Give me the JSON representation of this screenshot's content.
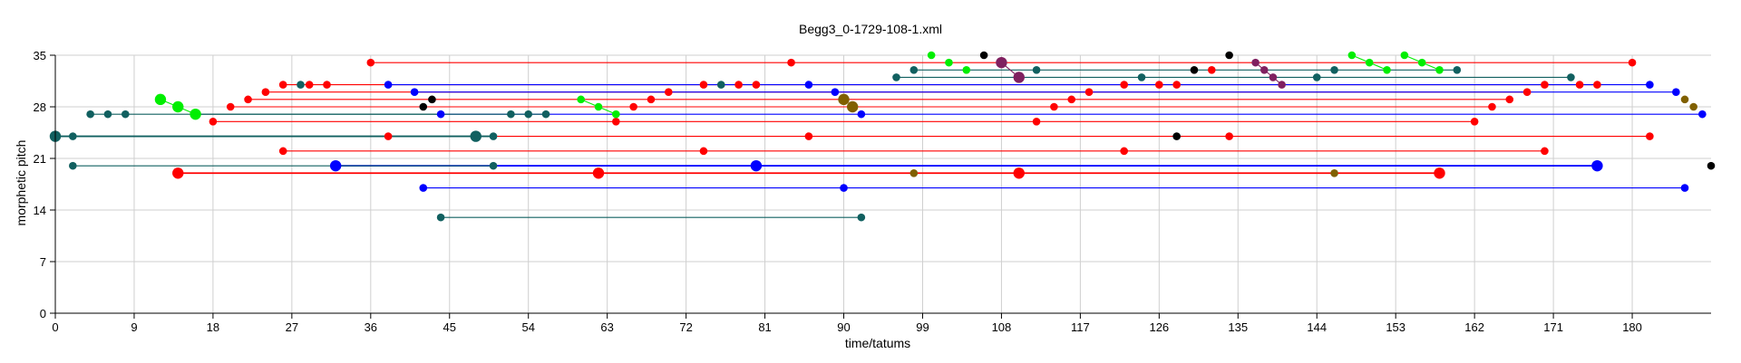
{
  "chart_data": {
    "type": "scatter",
    "title": "Begg3_0-1729-108-1.xml",
    "xlabel": "time/tatums",
    "ylabel": "morphetic pitch",
    "xlim": [
      0,
      189
    ],
    "ylim": [
      0,
      35
    ],
    "xticks": [
      0,
      9,
      18,
      27,
      36,
      45,
      54,
      63,
      72,
      81,
      90,
      99,
      108,
      117,
      126,
      135,
      144,
      153,
      162,
      171,
      180
    ],
    "yticks": [
      0,
      7,
      14,
      21,
      28,
      35
    ],
    "grid": true,
    "colors": {
      "red": "#ff0000",
      "blue": "#0000ff",
      "teal": "#116060",
      "green": "#00ee00",
      "black": "#000000",
      "purple": "#802060",
      "olive": "#806000"
    },
    "series": [
      {
        "color": "red",
        "points": [
          [
            36,
            34
          ],
          [
            84,
            34
          ],
          [
            180,
            34
          ]
        ]
      },
      {
        "color": "red",
        "points": [
          [
            26,
            31
          ],
          [
            29,
            31
          ],
          [
            31,
            31
          ],
          [
            74,
            31
          ],
          [
            78,
            31
          ],
          [
            80,
            31
          ],
          [
            122,
            31
          ],
          [
            126,
            31
          ],
          [
            128,
            31
          ],
          [
            170,
            31
          ],
          [
            174,
            31
          ],
          [
            176,
            31
          ]
        ]
      },
      {
        "color": "red",
        "points": [
          [
            24,
            30
          ],
          [
            70,
            30
          ],
          [
            118,
            30
          ],
          [
            168,
            30
          ]
        ]
      },
      {
        "color": "red",
        "points": [
          [
            22,
            29
          ],
          [
            68,
            29
          ],
          [
            116,
            29
          ],
          [
            166,
            29
          ]
        ]
      },
      {
        "color": "red",
        "points": [
          [
            20,
            28
          ],
          [
            66,
            28
          ],
          [
            114,
            28
          ],
          [
            164,
            28
          ]
        ]
      },
      {
        "color": "red",
        "points": [
          [
            18,
            26
          ],
          [
            64,
            26
          ],
          [
            112,
            26
          ],
          [
            162,
            26
          ]
        ]
      },
      {
        "color": "red",
        "points": [
          [
            132,
            33
          ]
        ]
      },
      {
        "color": "red",
        "points": [
          [
            38,
            24
          ],
          [
            86,
            24
          ],
          [
            134,
            24
          ],
          [
            182,
            24
          ]
        ]
      },
      {
        "color": "red",
        "points": [
          [
            26,
            22
          ],
          [
            74,
            22
          ],
          [
            122,
            22
          ],
          [
            170,
            22
          ]
        ]
      },
      {
        "color": "red",
        "points": [
          [
            14,
            19
          ],
          [
            62,
            19
          ],
          [
            110,
            19
          ],
          [
            158,
            19
          ]
        ],
        "large": true
      },
      {
        "color": "blue",
        "points": [
          [
            38,
            31
          ],
          [
            86,
            31
          ],
          [
            182,
            31
          ]
        ]
      },
      {
        "color": "blue",
        "points": [
          [
            41,
            30
          ],
          [
            89,
            30
          ],
          [
            185,
            30
          ]
        ]
      },
      {
        "color": "blue",
        "points": [
          [
            44,
            27
          ],
          [
            92,
            27
          ],
          [
            188,
            27
          ]
        ]
      },
      {
        "color": "blue",
        "points": [
          [
            32,
            20
          ],
          [
            80,
            20
          ],
          [
            176,
            20
          ]
        ],
        "large": true
      },
      {
        "color": "blue",
        "points": [
          [
            42,
            17
          ],
          [
            90,
            17
          ],
          [
            186,
            17
          ]
        ]
      },
      {
        "color": "teal",
        "points": [
          [
            28,
            31
          ],
          [
            76,
            31
          ],
          [
            112,
            33
          ],
          [
            124,
            32
          ],
          [
            144,
            32
          ],
          [
            146,
            33
          ],
          [
            160,
            33
          ],
          [
            173,
            32
          ]
        ]
      },
      {
        "color": "teal",
        "points": [
          [
            96,
            32
          ],
          [
            98,
            33
          ]
        ]
      },
      {
        "color": "teal",
        "points": [
          [
            0,
            24
          ],
          [
            2,
            24
          ],
          [
            48,
            24
          ],
          [
            50,
            24
          ]
        ],
        "large_first": true
      },
      {
        "color": "teal",
        "points": [
          [
            2,
            20
          ],
          [
            50,
            20
          ]
        ]
      },
      {
        "color": "teal",
        "points": [
          [
            4,
            27
          ],
          [
            6,
            27
          ],
          [
            8,
            27
          ],
          [
            52,
            27
          ],
          [
            54,
            27
          ],
          [
            56,
            27
          ]
        ]
      },
      {
        "color": "teal",
        "points": [
          [
            44,
            13
          ],
          [
            92,
            13
          ]
        ]
      },
      {
        "color": "green",
        "points": [
          [
            12,
            29
          ],
          [
            14,
            28
          ],
          [
            16,
            27
          ]
        ],
        "large": true
      },
      {
        "color": "green",
        "points": [
          [
            60,
            29
          ],
          [
            62,
            28
          ],
          [
            64,
            27
          ]
        ]
      },
      {
        "color": "green",
        "points": [
          [
            100,
            35
          ],
          [
            102,
            34
          ],
          [
            104,
            33
          ]
        ]
      },
      {
        "color": "green",
        "points": [
          [
            148,
            35
          ],
          [
            150,
            34
          ],
          [
            152,
            33
          ]
        ]
      },
      {
        "color": "green",
        "points": [
          [
            154,
            35
          ],
          [
            156,
            34
          ],
          [
            158,
            33
          ]
        ]
      },
      {
        "color": "black",
        "points": [
          [
            42,
            28
          ],
          [
            43,
            29
          ],
          [
            106,
            35
          ],
          [
            130,
            33
          ],
          [
            134,
            35
          ],
          [
            128,
            24
          ],
          [
            189,
            20
          ]
        ]
      },
      {
        "color": "purple",
        "points": [
          [
            108,
            34
          ],
          [
            110,
            32
          ]
        ],
        "large": true
      },
      {
        "color": "purple",
        "points": [
          [
            137,
            34
          ],
          [
            138,
            33
          ],
          [
            139,
            32
          ],
          [
            140,
            31
          ]
        ]
      },
      {
        "color": "olive",
        "points": [
          [
            90,
            29
          ],
          [
            91,
            28
          ]
        ],
        "large": true
      },
      {
        "color": "olive",
        "points": [
          [
            186,
            29
          ],
          [
            187,
            28
          ]
        ]
      },
      {
        "color": "olive",
        "points": [
          [
            98,
            19
          ],
          [
            146,
            19
          ]
        ]
      }
    ],
    "connectors": [
      {
        "color": "red",
        "from": [
          36,
          34
        ],
        "to": [
          180,
          34
        ]
      },
      {
        "color": "red",
        "from": [
          26,
          31
        ],
        "to": [
          176,
          31
        ]
      },
      {
        "color": "red",
        "from": [
          24,
          30
        ],
        "to": [
          168,
          30
        ]
      },
      {
        "color": "red",
        "from": [
          22,
          29
        ],
        "to": [
          166,
          29
        ]
      },
      {
        "color": "red",
        "from": [
          20,
          28
        ],
        "to": [
          164,
          28
        ]
      },
      {
        "color": "red",
        "from": [
          18,
          26
        ],
        "to": [
          162,
          26
        ]
      },
      {
        "color": "red",
        "from": [
          38,
          24
        ],
        "to": [
          182,
          24
        ]
      },
      {
        "color": "red",
        "from": [
          26,
          22
        ],
        "to": [
          170,
          22
        ]
      },
      {
        "color": "red",
        "from": [
          14,
          19
        ],
        "to": [
          158,
          19
        ],
        "thick": true
      },
      {
        "color": "blue",
        "from": [
          38,
          31
        ],
        "to": [
          182,
          31
        ]
      },
      {
        "color": "blue",
        "from": [
          41,
          30
        ],
        "to": [
          185,
          30
        ]
      },
      {
        "color": "blue",
        "from": [
          44,
          27
        ],
        "to": [
          188,
          27
        ]
      },
      {
        "color": "blue",
        "from": [
          32,
          20
        ],
        "to": [
          176,
          20
        ],
        "thick": true
      },
      {
        "color": "blue",
        "from": [
          42,
          17
        ],
        "to": [
          186,
          17
        ]
      },
      {
        "color": "teal",
        "from": [
          96,
          32
        ],
        "to": [
          173,
          32
        ]
      },
      {
        "color": "teal",
        "from": [
          98,
          33
        ],
        "to": [
          160,
          33
        ]
      },
      {
        "color": "teal",
        "from": [
          0,
          24
        ],
        "to": [
          50,
          24
        ],
        "thick": true
      },
      {
        "color": "teal",
        "from": [
          2,
          20
        ],
        "to": [
          50,
          20
        ]
      },
      {
        "color": "teal",
        "from": [
          4,
          27
        ],
        "to": [
          56,
          27
        ]
      },
      {
        "color": "teal",
        "from": [
          44,
          13
        ],
        "to": [
          92,
          13
        ]
      },
      {
        "color": "teal",
        "from": [
          16,
          27
        ],
        "to": [
          44,
          27
        ]
      },
      {
        "color": "green",
        "from": [
          12,
          29
        ],
        "to": [
          16,
          27
        ]
      },
      {
        "color": "green",
        "from": [
          60,
          29
        ],
        "to": [
          64,
          27
        ]
      },
      {
        "color": "green",
        "from": [
          148,
          35
        ],
        "to": [
          152,
          33
        ]
      },
      {
        "color": "green",
        "from": [
          154,
          35
        ],
        "to": [
          158,
          33
        ]
      },
      {
        "color": "purple",
        "from": [
          108,
          34
        ],
        "to": [
          110,
          32
        ]
      },
      {
        "color": "purple",
        "from": [
          137,
          34
        ],
        "to": [
          140,
          31
        ]
      }
    ]
  }
}
